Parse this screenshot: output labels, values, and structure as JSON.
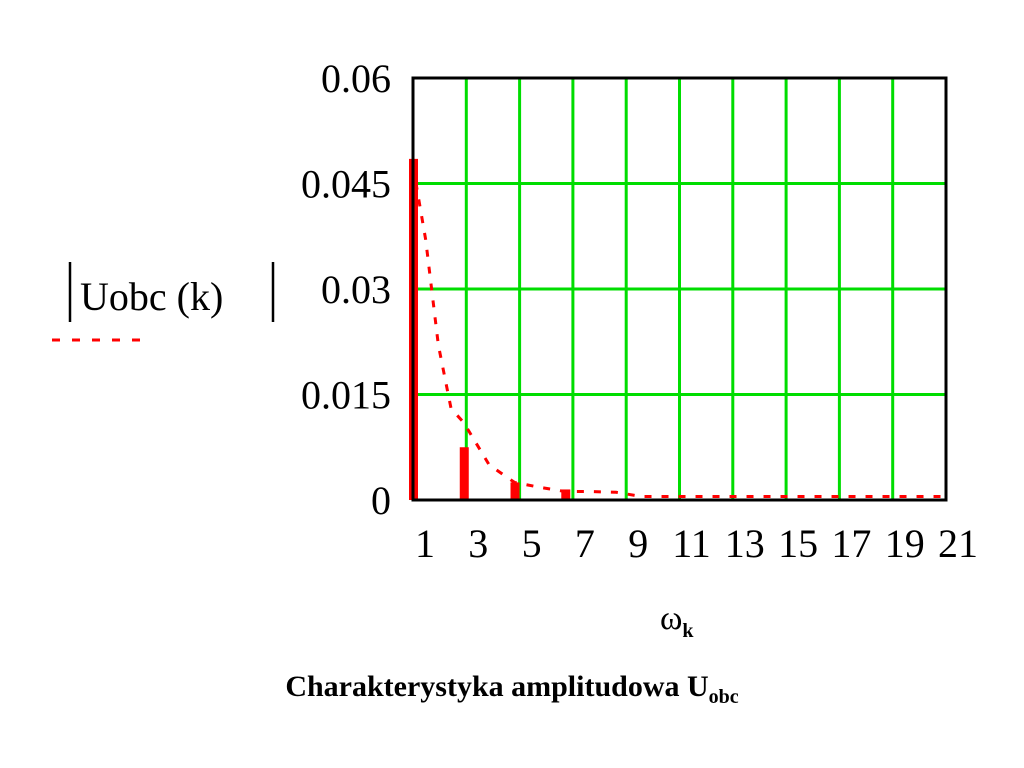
{
  "chart_data": {
    "type": "bar",
    "title": "Charakterystyka amplitudowa U",
    "title_subscript": "obc",
    "xlabel": "ω",
    "xlabel_subscript": "k",
    "ylabel": "Uobc (k)",
    "ylim": [
      0,
      0.06
    ],
    "xlim": [
      0,
      21
    ],
    "yticks": [
      "0",
      "0.015",
      "0.03",
      "0.045",
      "0.06"
    ],
    "ytick_values": [
      0,
      0.015,
      0.03,
      0.045,
      0.06
    ],
    "xticks": [
      "1",
      "3",
      "5",
      "7",
      "9",
      "11",
      "13",
      "15",
      "17",
      "19",
      "21"
    ],
    "grid": true,
    "colors": {
      "bars": "#ff0000",
      "line": "#ff0000",
      "grid": "#00dd00",
      "frame": "#000000"
    },
    "series": [
      {
        "style": "bar",
        "x": [
          0,
          2,
          4,
          6
        ],
        "values": [
          0.0485,
          0.0075,
          0.0025,
          0.0015
        ]
      },
      {
        "style": "dashed-line",
        "x": [
          0,
          0.5,
          1,
          1.5,
          2,
          3,
          4,
          5,
          6,
          7,
          8,
          9,
          10,
          11,
          13,
          15,
          17,
          19,
          21
        ],
        "values": [
          0.0475,
          0.037,
          0.022,
          0.013,
          0.011,
          0.005,
          0.0025,
          0.0018,
          0.0012,
          0.0012,
          0.0011,
          0.0005,
          0.0005,
          0.0005,
          0.0005,
          0.0005,
          0.0005,
          0.0005,
          0.0005
        ]
      }
    ]
  }
}
